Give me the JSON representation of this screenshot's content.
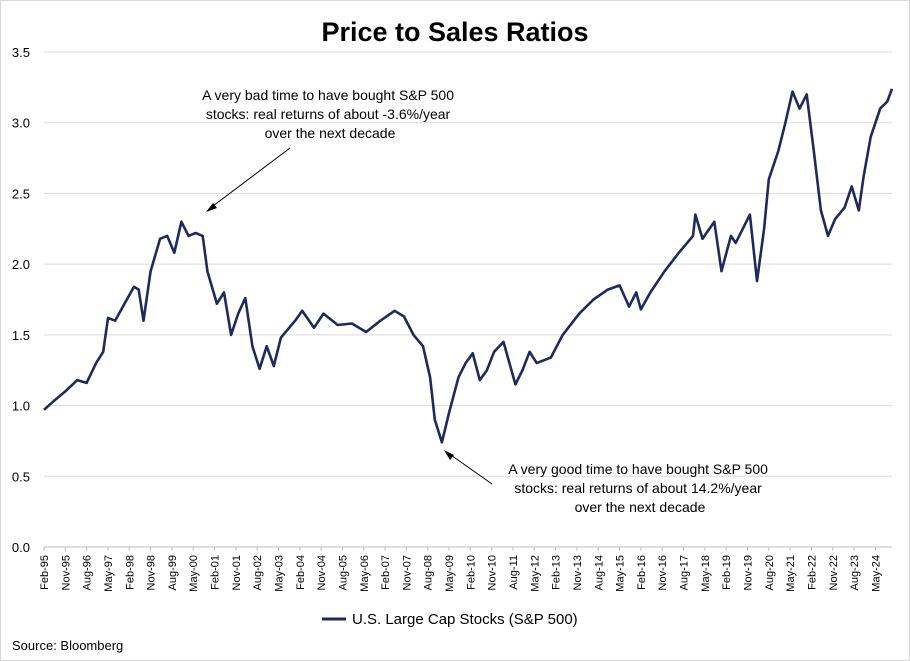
{
  "chart_data": {
    "type": "line",
    "title": "Price to Sales Ratios",
    "xlabel": "",
    "ylabel": "",
    "ylim": [
      0,
      3.5
    ],
    "y_ticks": [
      "0.0",
      "0.5",
      "1.0",
      "1.5",
      "2.0",
      "2.5",
      "3.0",
      "3.5"
    ],
    "x_ticks": [
      "Feb-95",
      "Nov-95",
      "Aug-96",
      "May-97",
      "Feb-98",
      "Nov-98",
      "Aug-99",
      "May-00",
      "Feb-01",
      "Nov-01",
      "Aug-02",
      "May-03",
      "Feb-04",
      "Nov-04",
      "Aug-05",
      "May-06",
      "Feb-07",
      "Nov-07",
      "Aug-08",
      "May-09",
      "Feb-10",
      "Nov-10",
      "Aug-11",
      "May-12",
      "Feb-13",
      "Nov-13",
      "Aug-14",
      "May-15",
      "Feb-16",
      "Nov-16",
      "Aug-17",
      "May-18",
      "Feb-19",
      "Nov-19",
      "Aug-20",
      "May-21",
      "Feb-22",
      "Nov-22",
      "Aug-23",
      "May-24"
    ],
    "grid": "horizontal",
    "legend_position": "bottom",
    "line_color": "#1f2a5c",
    "series": [
      {
        "name": "U.S. Large Cap Stocks (S&P 500)",
        "points": [
          [
            "1995-02",
            0.97
          ],
          [
            "1995-06",
            1.03
          ],
          [
            "1995-11",
            1.1
          ],
          [
            "1996-04",
            1.18
          ],
          [
            "1996-08",
            1.16
          ],
          [
            "1996-12",
            1.3
          ],
          [
            "1997-03",
            1.38
          ],
          [
            "1997-05",
            1.62
          ],
          [
            "1997-08",
            1.6
          ],
          [
            "1997-12",
            1.72
          ],
          [
            "1998-04",
            1.84
          ],
          [
            "1998-06",
            1.82
          ],
          [
            "1998-08",
            1.6
          ],
          [
            "1998-11",
            1.95
          ],
          [
            "1999-03",
            2.18
          ],
          [
            "1999-06",
            2.2
          ],
          [
            "1999-09",
            2.08
          ],
          [
            "1999-12",
            2.3
          ],
          [
            "2000-03",
            2.2
          ],
          [
            "2000-06",
            2.22
          ],
          [
            "2000-09",
            2.2
          ],
          [
            "2000-11",
            1.95
          ],
          [
            "2001-03",
            1.72
          ],
          [
            "2001-06",
            1.8
          ],
          [
            "2001-09",
            1.5
          ],
          [
            "2001-12",
            1.65
          ],
          [
            "2002-03",
            1.76
          ],
          [
            "2002-06",
            1.42
          ],
          [
            "2002-09",
            1.26
          ],
          [
            "2002-12",
            1.42
          ],
          [
            "2003-03",
            1.28
          ],
          [
            "2003-06",
            1.48
          ],
          [
            "2003-12",
            1.6
          ],
          [
            "2004-03",
            1.67
          ],
          [
            "2004-08",
            1.55
          ],
          [
            "2004-12",
            1.65
          ],
          [
            "2005-06",
            1.57
          ],
          [
            "2005-12",
            1.58
          ],
          [
            "2006-06",
            1.52
          ],
          [
            "2006-12",
            1.6
          ],
          [
            "2007-06",
            1.67
          ],
          [
            "2007-10",
            1.63
          ],
          [
            "2008-02",
            1.5
          ],
          [
            "2008-06",
            1.42
          ],
          [
            "2008-09",
            1.2
          ],
          [
            "2008-11",
            0.9
          ],
          [
            "2009-02",
            0.74
          ],
          [
            "2009-05",
            0.95
          ],
          [
            "2009-09",
            1.2
          ],
          [
            "2009-12",
            1.3
          ],
          [
            "2010-03",
            1.37
          ],
          [
            "2010-06",
            1.18
          ],
          [
            "2010-09",
            1.25
          ],
          [
            "2010-12",
            1.38
          ],
          [
            "2011-04",
            1.45
          ],
          [
            "2011-09",
            1.15
          ],
          [
            "2011-12",
            1.25
          ],
          [
            "2012-03",
            1.38
          ],
          [
            "2012-06",
            1.3
          ],
          [
            "2012-12",
            1.34
          ],
          [
            "2013-05",
            1.5
          ],
          [
            "2013-12",
            1.65
          ],
          [
            "2014-06",
            1.75
          ],
          [
            "2014-12",
            1.82
          ],
          [
            "2015-05",
            1.85
          ],
          [
            "2015-09",
            1.7
          ],
          [
            "2015-12",
            1.8
          ],
          [
            "2016-02",
            1.68
          ],
          [
            "2016-06",
            1.8
          ],
          [
            "2016-12",
            1.95
          ],
          [
            "2017-06",
            2.08
          ],
          [
            "2017-12",
            2.2
          ],
          [
            "2018-01",
            2.35
          ],
          [
            "2018-04",
            2.18
          ],
          [
            "2018-09",
            2.3
          ],
          [
            "2018-12",
            1.95
          ],
          [
            "2019-04",
            2.2
          ],
          [
            "2019-06",
            2.15
          ],
          [
            "2019-12",
            2.35
          ],
          [
            "2020-03",
            1.88
          ],
          [
            "2020-06",
            2.25
          ],
          [
            "2020-08",
            2.6
          ],
          [
            "2020-12",
            2.8
          ],
          [
            "2021-03",
            3.0
          ],
          [
            "2021-06",
            3.22
          ],
          [
            "2021-09",
            3.1
          ],
          [
            "2021-12",
            3.2
          ],
          [
            "2022-03",
            2.8
          ],
          [
            "2022-06",
            2.38
          ],
          [
            "2022-09",
            2.2
          ],
          [
            "2022-12",
            2.32
          ],
          [
            "2023-04",
            2.4
          ],
          [
            "2023-07",
            2.55
          ],
          [
            "2023-10",
            2.38
          ],
          [
            "2023-12",
            2.62
          ],
          [
            "2024-03",
            2.9
          ],
          [
            "2024-07",
            3.1
          ],
          [
            "2024-10",
            3.15
          ],
          [
            "2024-12",
            3.24
          ]
        ]
      }
    ],
    "annotations": [
      {
        "id": "top",
        "lines": [
          "A very bad time to have bought S&P 500",
          "stocks: real returns of about -3.6%/year",
          "over the next decade"
        ]
      },
      {
        "id": "bottom",
        "lines": [
          "A very good time to have bought S&P 500",
          "stocks: real returns of about 14.2%/year",
          "over the next decade"
        ]
      }
    ],
    "source": "Source: Bloomberg"
  }
}
